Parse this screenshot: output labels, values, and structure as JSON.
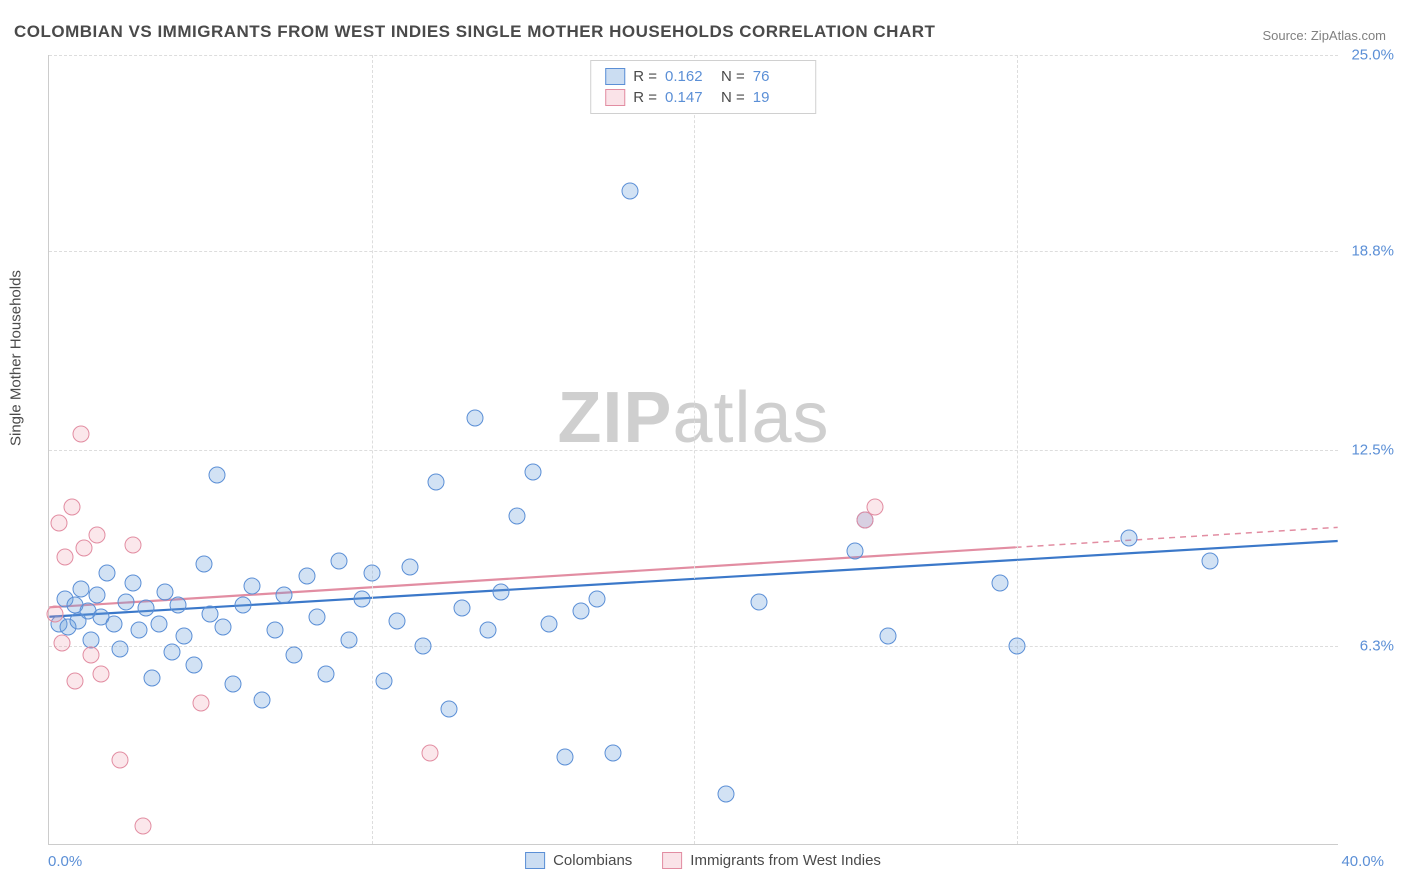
{
  "title": "COLOMBIAN VS IMMIGRANTS FROM WEST INDIES SINGLE MOTHER HOUSEHOLDS CORRELATION CHART",
  "source": "Source: ZipAtlas.com",
  "watermark": {
    "bold": "ZIP",
    "rest": "atlas"
  },
  "ylabel": "Single Mother Households",
  "xlim": [
    0.0,
    40.0
  ],
  "ylim": [
    0.0,
    25.0
  ],
  "yticks": [
    {
      "v": 25.0,
      "label": "25.0%"
    },
    {
      "v": 18.8,
      "label": "18.8%"
    },
    {
      "v": 12.5,
      "label": "12.5%"
    },
    {
      "v": 6.3,
      "label": "6.3%"
    }
  ],
  "xtick_left": "0.0%",
  "xtick_right": "40.0%",
  "vgrid_x": [
    10.0,
    20.0,
    30.0
  ],
  "series": [
    {
      "key": "colombians",
      "label": "Colombians",
      "swatch": "sw-blue",
      "pt_class": "pt-blue",
      "line_color": "#3b78c9",
      "line_dash": "",
      "R_label": "R =",
      "R": "0.162",
      "N_label": "N =",
      "N": "76",
      "trend": {
        "x1": 0.0,
        "y1": 7.2,
        "x2": 40.0,
        "y2": 9.6
      },
      "points": [
        [
          0.3,
          7.0
        ],
        [
          0.5,
          7.8
        ],
        [
          0.6,
          6.9
        ],
        [
          0.8,
          7.6
        ],
        [
          0.9,
          7.1
        ],
        [
          1.0,
          8.1
        ],
        [
          1.2,
          7.4
        ],
        [
          1.3,
          6.5
        ],
        [
          1.5,
          7.9
        ],
        [
          1.6,
          7.2
        ],
        [
          1.8,
          8.6
        ],
        [
          2.0,
          7.0
        ],
        [
          2.2,
          6.2
        ],
        [
          2.4,
          7.7
        ],
        [
          2.6,
          8.3
        ],
        [
          2.8,
          6.8
        ],
        [
          3.0,
          7.5
        ],
        [
          3.2,
          5.3
        ],
        [
          3.4,
          7.0
        ],
        [
          3.6,
          8.0
        ],
        [
          3.8,
          6.1
        ],
        [
          4.0,
          7.6
        ],
        [
          4.2,
          6.6
        ],
        [
          4.5,
          5.7
        ],
        [
          4.8,
          8.9
        ],
        [
          5.0,
          7.3
        ],
        [
          5.2,
          11.7
        ],
        [
          5.4,
          6.9
        ],
        [
          5.7,
          5.1
        ],
        [
          6.0,
          7.6
        ],
        [
          6.3,
          8.2
        ],
        [
          6.6,
          4.6
        ],
        [
          7.0,
          6.8
        ],
        [
          7.3,
          7.9
        ],
        [
          7.6,
          6.0
        ],
        [
          8.0,
          8.5
        ],
        [
          8.3,
          7.2
        ],
        [
          8.6,
          5.4
        ],
        [
          9.0,
          9.0
        ],
        [
          9.3,
          6.5
        ],
        [
          9.7,
          7.8
        ],
        [
          10.0,
          8.6
        ],
        [
          10.4,
          5.2
        ],
        [
          10.8,
          7.1
        ],
        [
          11.2,
          8.8
        ],
        [
          11.6,
          6.3
        ],
        [
          12.0,
          11.5
        ],
        [
          12.4,
          4.3
        ],
        [
          12.8,
          7.5
        ],
        [
          13.2,
          13.5
        ],
        [
          13.6,
          6.8
        ],
        [
          14.0,
          8.0
        ],
        [
          14.5,
          10.4
        ],
        [
          15.0,
          11.8
        ],
        [
          15.5,
          7.0
        ],
        [
          16.0,
          2.8
        ],
        [
          16.5,
          7.4
        ],
        [
          17.0,
          7.8
        ],
        [
          17.5,
          2.9
        ],
        [
          18.0,
          20.7
        ],
        [
          21.0,
          1.6
        ],
        [
          22.0,
          7.7
        ],
        [
          25.0,
          9.3
        ],
        [
          25.3,
          10.3
        ],
        [
          26.0,
          6.6
        ],
        [
          29.5,
          8.3
        ],
        [
          30.0,
          6.3
        ],
        [
          33.5,
          9.7
        ],
        [
          36.0,
          9.0
        ]
      ]
    },
    {
      "key": "west_indies",
      "label": "Immigrants from West Indies",
      "swatch": "sw-pink",
      "pt_class": "pt-pink",
      "line_color": "#e28da2",
      "line_dash": "",
      "dash_ext": {
        "x1": 30.0,
        "x2": 40.0,
        "color": "#e28da2"
      },
      "R_label": "R =",
      "R": "0.147",
      "N_label": "N =",
      "N": "19",
      "trend": {
        "x1": 0.0,
        "y1": 7.5,
        "x2": 30.0,
        "y2": 9.4
      },
      "points": [
        [
          0.2,
          7.3
        ],
        [
          0.3,
          10.2
        ],
        [
          0.4,
          6.4
        ],
        [
          0.5,
          9.1
        ],
        [
          0.7,
          10.7
        ],
        [
          0.8,
          5.2
        ],
        [
          1.0,
          13.0
        ],
        [
          1.1,
          9.4
        ],
        [
          1.3,
          6.0
        ],
        [
          1.5,
          9.8
        ],
        [
          1.6,
          5.4
        ],
        [
          2.2,
          2.7
        ],
        [
          2.6,
          9.5
        ],
        [
          2.9,
          0.6
        ],
        [
          4.7,
          4.5
        ],
        [
          11.8,
          2.9
        ],
        [
          25.3,
          10.3
        ],
        [
          25.6,
          10.7
        ]
      ]
    }
  ]
}
